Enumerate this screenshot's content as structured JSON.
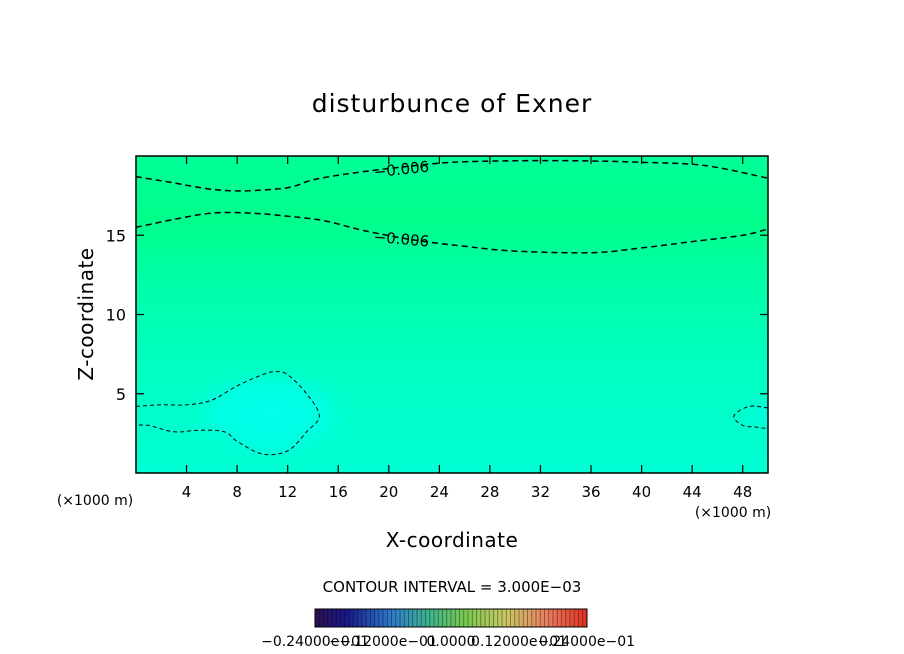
{
  "chart_data": {
    "type": "contour",
    "title": "disturbunce of Exner",
    "xlabel": "X-coordinate",
    "ylabel": "Z-coordinate",
    "x_unit_label": "(×1000 m)",
    "z_unit_label": "(×1000 m)",
    "xlim": [
      0,
      50
    ],
    "ylim": [
      0,
      20
    ],
    "x_ticks": [
      4,
      8,
      12,
      16,
      20,
      24,
      28,
      32,
      36,
      40,
      44,
      48
    ],
    "y_ticks": [
      5,
      10,
      15
    ],
    "contour_interval_text": "CONTOUR INTERVAL = 3.000E−03",
    "contour_labels": [
      "−0.006",
      "−0.006"
    ],
    "colorbar_labels": [
      "−0.24000e−01",
      "−0.12000e−01",
      "0.0000",
      "0.12000e−01",
      "0.24000e−01"
    ],
    "contour_lines": [
      {
        "label": "−0.006",
        "points": [
          [
            0,
            18.7
          ],
          [
            3,
            18.3
          ],
          [
            6,
            17.9
          ],
          [
            8.5,
            17.8
          ],
          [
            12,
            18.0
          ],
          [
            14,
            18.5
          ],
          [
            17,
            18.9
          ],
          [
            21,
            19.3
          ],
          [
            25,
            19.6
          ],
          [
            30,
            19.7
          ],
          [
            35,
            19.7
          ],
          [
            40,
            19.6
          ],
          [
            45,
            19.4
          ],
          [
            50,
            18.6
          ]
        ]
      },
      {
        "label": "−0.006",
        "points": [
          [
            0,
            15.5
          ],
          [
            3,
            16.0
          ],
          [
            6,
            16.4
          ],
          [
            9,
            16.4
          ],
          [
            12,
            16.2
          ],
          [
            15,
            15.9
          ],
          [
            18,
            15.3
          ],
          [
            22,
            14.7
          ],
          [
            26,
            14.3
          ],
          [
            30,
            14.0
          ],
          [
            36,
            13.9
          ],
          [
            40,
            14.2
          ],
          [
            44,
            14.6
          ],
          [
            48,
            15.0
          ],
          [
            50,
            15.4
          ]
        ]
      },
      {
        "label": "",
        "points": [
          [
            0,
            4.2
          ],
          [
            2,
            4.3
          ],
          [
            4,
            4.3
          ],
          [
            6,
            4.6
          ],
          [
            8,
            5.5
          ],
          [
            10,
            6.2
          ],
          [
            11,
            6.4
          ],
          [
            12,
            6.2
          ],
          [
            13.5,
            5.0
          ],
          [
            14.5,
            3.6
          ],
          [
            13.5,
            2.6
          ],
          [
            12,
            1.4
          ],
          [
            10,
            1.2
          ],
          [
            8,
            2.0
          ],
          [
            7,
            2.6
          ],
          [
            5,
            2.7
          ],
          [
            3,
            2.6
          ],
          [
            1,
            3.0
          ],
          [
            0,
            3.0
          ]
        ]
      },
      {
        "label": "",
        "points": [
          [
            50,
            4.1
          ],
          [
            48.5,
            4.2
          ],
          [
            47.3,
            3.6
          ],
          [
            48,
            3.0
          ],
          [
            49,
            2.9
          ],
          [
            50,
            2.8
          ]
        ]
      }
    ],
    "colors": {
      "field_low": "#00ffea",
      "field_mid": "#00ffb4",
      "field_high": "#00ff86",
      "contour": "#000000"
    }
  }
}
